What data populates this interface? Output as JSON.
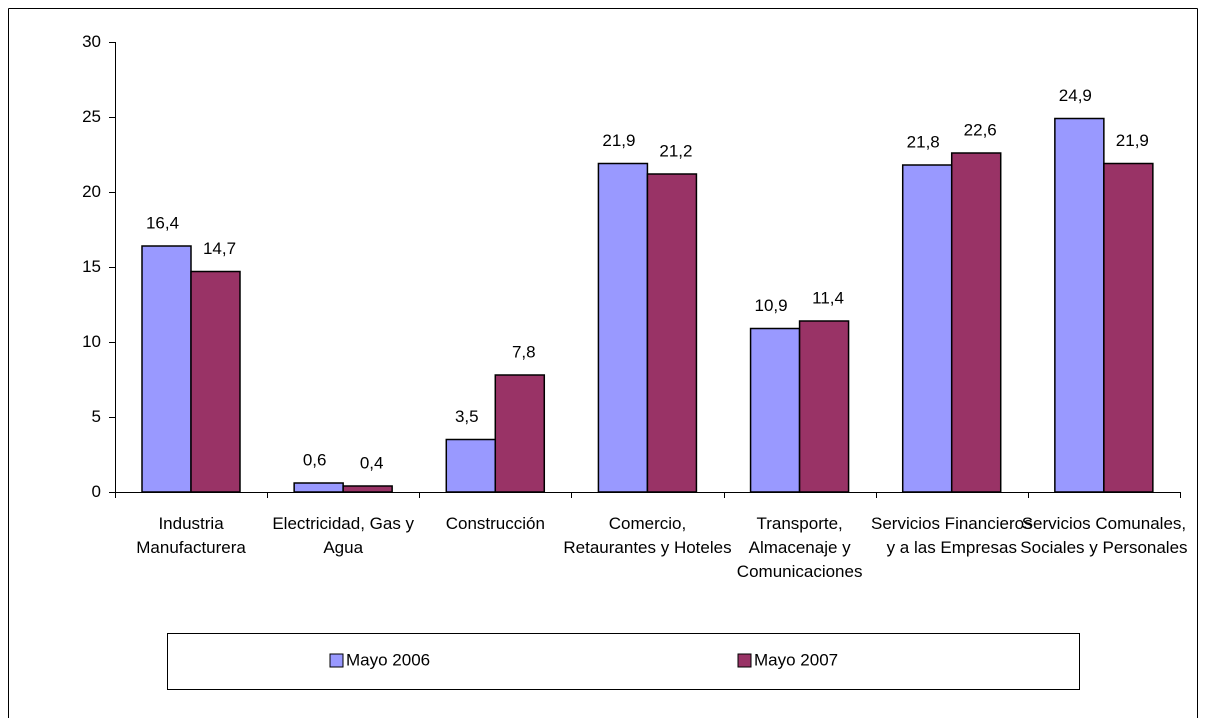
{
  "chart_data": {
    "type": "bar",
    "categories": [
      "Industria Manufacturera",
      "Electricidad, Gas y Agua",
      "Construcción",
      "Comercio, Retaurantes y Hoteles",
      "Transporte, Almacenaje y Comunicaciones",
      "Servicios Financieros y a las Empresas",
      "Servicios Comunales, Sociales y Personales"
    ],
    "series": [
      {
        "name": "Mayo 2006",
        "color": "#9999ff",
        "values": [
          16.4,
          0.6,
          3.5,
          21.9,
          10.9,
          21.8,
          24.9
        ],
        "value_labels": [
          "16,4",
          "0,6",
          "3,5",
          "21,9",
          "10,9",
          "21,8",
          "24,9"
        ]
      },
      {
        "name": "Mayo 2007",
        "color": "#993366",
        "values": [
          14.7,
          0.4,
          7.8,
          21.2,
          11.4,
          22.6,
          21.9
        ],
        "value_labels": [
          "14,7",
          "0,4",
          "7,8",
          "21,2",
          "11,4",
          "22,6",
          "21,9"
        ]
      }
    ],
    "ylim": [
      0,
      30
    ],
    "yticks": [
      0,
      5,
      10,
      15,
      20,
      25,
      30
    ],
    "legend": "bottom"
  }
}
